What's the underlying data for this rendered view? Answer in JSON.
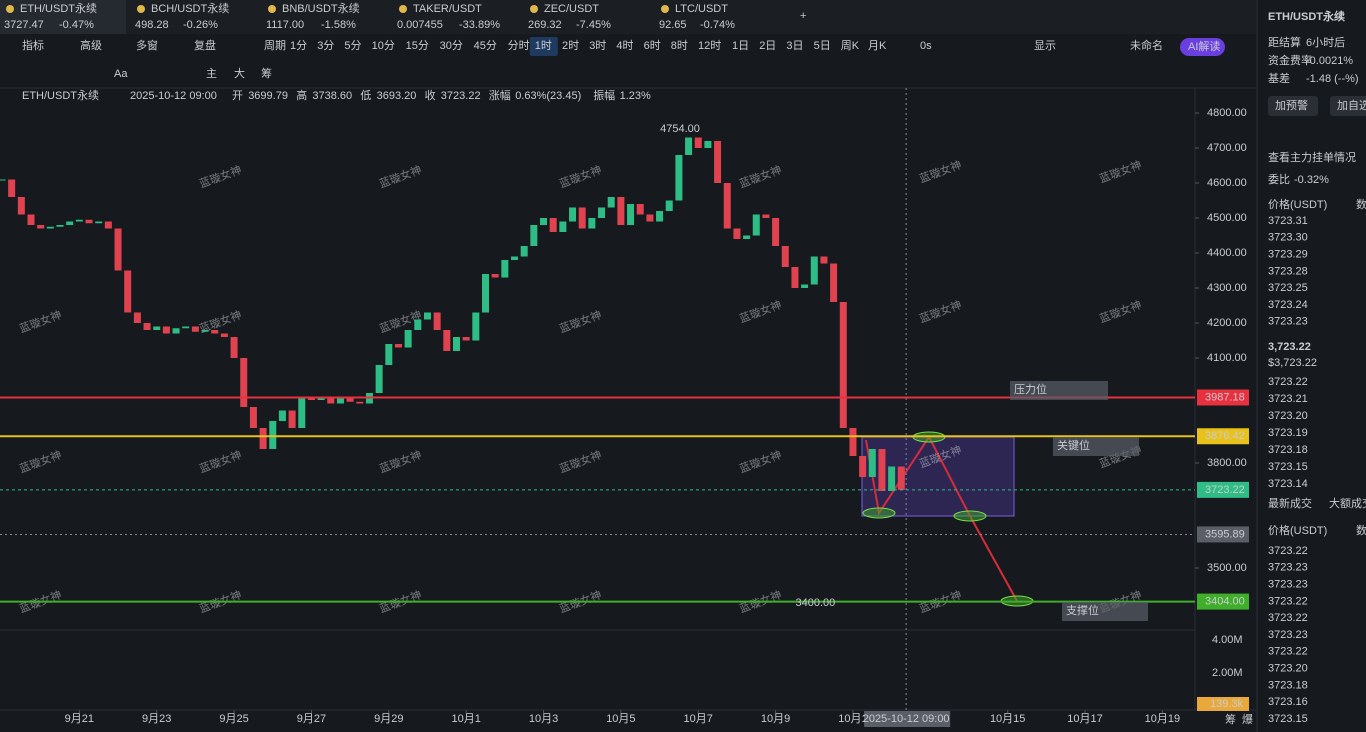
{
  "tabs": [
    {
      "name": "ETH/USDT永续",
      "price": "3727.47",
      "change": "-0.47%"
    },
    {
      "name": "BCH/USDT永续",
      "price": "498.28",
      "change": "-0.26%"
    },
    {
      "name": "BNB/USDT永续",
      "price": "1117.00",
      "change": "-1.58%"
    },
    {
      "name": "TAKER/USDT",
      "price": "0.007455",
      "change": "-33.89%"
    },
    {
      "name": "ZEC/USDT",
      "price": "269.32",
      "change": "-7.45%"
    },
    {
      "name": "LTC/USDT",
      "price": "92.65",
      "change": "-0.74%"
    }
  ],
  "toolbar": {
    "tools": [
      "指标",
      "高级",
      "多窗",
      "复盘",
      "周期"
    ],
    "periods": [
      "1分",
      "3分",
      "5分",
      "10分",
      "15分",
      "30分",
      "45分",
      "分时",
      "1时",
      "2时",
      "3时",
      "4时",
      "6时",
      "8时",
      "12时",
      "1日",
      "2日",
      "3日",
      "5日",
      "周K",
      "月K"
    ],
    "right": [
      "0s",
      "显示",
      "未命名",
      "AI解读"
    ]
  },
  "draw_tools": [
    "Aa",
    "主",
    "大",
    "筹"
  ],
  "info": [
    "ETH/USDT永续",
    "2025-10-12 09:00",
    "开",
    "3699.79",
    "高",
    "3738.60",
    "低",
    "3693.20",
    "收",
    "3723.22",
    "涨幅",
    "0.63%(23.45)",
    "振幅",
    "1.23%"
  ],
  "watermark": "蓝璇女神",
  "chart_data": {
    "type": "candlestick",
    "closes": [
      4610,
      4560,
      4510,
      4480,
      4470,
      4475,
      4480,
      4490,
      4495,
      4485,
      4490,
      4470,
      4350,
      4230,
      4200,
      4180,
      4190,
      4170,
      4185,
      4190,
      4175,
      4180,
      4170,
      4160,
      4100,
      3960,
      3900,
      3840,
      3920,
      3950,
      3900,
      3990,
      3980,
      3990,
      3970,
      3985,
      3975,
      3970,
      4000,
      4080,
      4140,
      4130,
      4180,
      4210,
      4230,
      4180,
      4120,
      4160,
      4150,
      4230,
      4340,
      4330,
      4380,
      4390,
      4420,
      4480,
      4500,
      4460,
      4490,
      4530,
      4470,
      4500,
      4530,
      4560,
      4480,
      4540,
      4510,
      4490,
      4520,
      4550,
      4680,
      4730,
      4700,
      4720,
      4600,
      4470,
      4440,
      4450,
      4510,
      4500,
      4420,
      4360,
      4300,
      4310,
      4390,
      4370,
      4260,
      3900,
      3820,
      3760,
      3840,
      3720,
      3790,
      3723.22
    ],
    "ylim": [
      3300,
      4850
    ],
    "yticks": [
      {
        "value": 4800,
        "label": "4800.00"
      },
      {
        "value": 4700,
        "label": "4700.00"
      },
      {
        "value": 4600,
        "label": "4600.00"
      },
      {
        "value": 4500,
        "label": "4500.00"
      },
      {
        "value": 4400,
        "label": "4400.00"
      },
      {
        "value": 4300,
        "label": "4300.00"
      },
      {
        "value": 4200,
        "label": "4200.00"
      },
      {
        "value": 4100,
        "label": "4100.00"
      },
      {
        "value": 3800,
        "label": "3800.00"
      },
      {
        "value": 3500,
        "label": "3500.00"
      }
    ],
    "xticks": [
      {
        "value": 8,
        "label": "9月21"
      },
      {
        "value": 16,
        "label": "9月23"
      },
      {
        "value": 24,
        "label": "9月25"
      },
      {
        "value": 32,
        "label": "9月27"
      },
      {
        "value": 40,
        "label": "9月29"
      },
      {
        "value": 48,
        "label": "10月1"
      },
      {
        "value": 56,
        "label": "10月3"
      },
      {
        "value": 64,
        "label": "10月5"
      },
      {
        "value": 72,
        "label": "10月7"
      },
      {
        "value": 80,
        "label": "10月9"
      },
      {
        "value": 88,
        "label": "10月1"
      },
      {
        "value": 104,
        "label": "10月15"
      },
      {
        "value": 112,
        "label": "10月17"
      },
      {
        "value": 120,
        "label": "10月19"
      }
    ],
    "levels": [
      {
        "value": 3987.18,
        "value_label": "3987.18",
        "label": "压力位",
        "color": "#e8303f"
      },
      {
        "value": 3876.42,
        "value_label": "3876.42",
        "label": "关键位",
        "color": "#e8c21a"
      },
      {
        "value": 3404,
        "value_label": "3404.00",
        "label": "支撑位",
        "color": "#3fae2a"
      }
    ],
    "current": {
      "value": 3723.22,
      "value_label": "3723.22"
    },
    "crosshair": {
      "value": 3595.89,
      "value_label": "3595.89",
      "x": 93.5,
      "x_label": "2025-10-12 09:00"
    },
    "annotations": [
      {
        "x": 73,
        "value": 4754,
        "label": "4754.00"
      },
      {
        "x": 87,
        "value": 3400,
        "label": "3400.00"
      }
    ],
    "volume_ticks": [
      "4.00M",
      "2.00M"
    ],
    "volume_label": "139.3k",
    "bottom_tools": [
      "筹",
      "爆"
    ]
  },
  "side": {
    "title": "ETH/USDT永续",
    "stats": [
      [
        "距结算",
        "6小时后"
      ],
      [
        "资金费率",
        "-0.0021%"
      ],
      [
        "基差",
        "-1.48 (--%)"
      ]
    ],
    "buttons": [
      "加预警",
      "加自选"
    ],
    "depth_title": "查看主力挂单情况",
    "ratio": [
      "委比",
      "-0.32%"
    ],
    "col": [
      "价格(USDT)",
      "数"
    ],
    "asks": [
      "3723.31",
      "3723.30",
      "3723.29",
      "3723.28",
      "3723.25",
      "3723.24",
      "3723.23"
    ],
    "last": "3,723.22",
    "last_usd": "$3,723.22",
    "bids": [
      "3723.22",
      "3723.21",
      "3723.20",
      "3723.19",
      "3723.18",
      "3723.15",
      "3723.14"
    ],
    "trade_tabs": [
      "最新成交",
      "大额成交"
    ],
    "trades": [
      [
        "3723.22",
        "sell"
      ],
      [
        "3723.23",
        "buy"
      ],
      [
        "3723.23",
        "buy"
      ],
      [
        "3723.22",
        "sell"
      ],
      [
        "3723.22",
        "sell"
      ],
      [
        "3723.23",
        "buy"
      ],
      [
        "3723.22",
        "sell"
      ],
      [
        "3723.20",
        "buy"
      ],
      [
        "3723.18",
        "buy"
      ],
      [
        "3723.16",
        "buy"
      ],
      [
        "3723.15",
        "buy"
      ]
    ]
  }
}
